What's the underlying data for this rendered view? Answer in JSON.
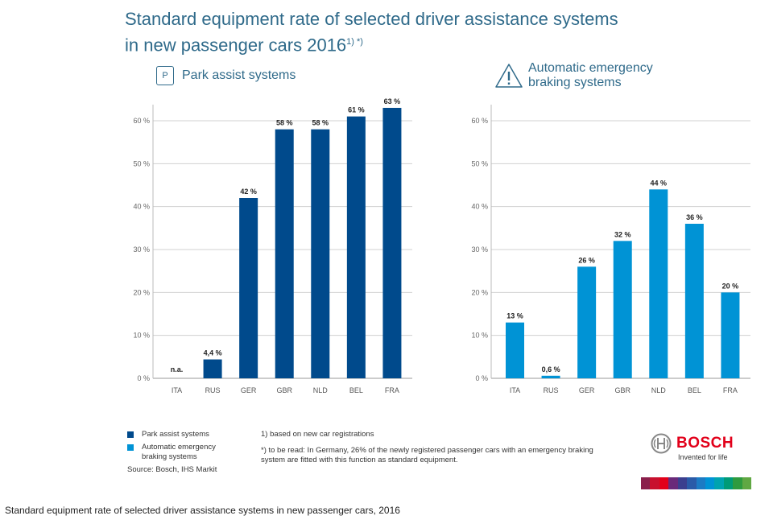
{
  "title": {
    "text": "Standard equipment rate of selected driver assistance systems",
    "line2": "in new passenger cars 2016",
    "superscript": "1) *)"
  },
  "park_panel": {
    "icon_letter": "P",
    "label": "Park assist systems"
  },
  "aeb_panel": {
    "label": "Automatic emergency braking systems"
  },
  "legend": {
    "items": [
      {
        "label": "Park assist systems",
        "color": "#004a8c"
      },
      {
        "label": "Automatic emergency braking systems",
        "color": "#0093d5"
      }
    ],
    "source": "Source: Bosch, IHS Markit"
  },
  "notes": {
    "note1": "1) based on new car registrations",
    "note2": "*) to be read: In Germany, 26% of the newly registered passenger cars with an emergency braking system are fitted with this function as standard equipment."
  },
  "brand": {
    "name": "BOSCH",
    "claim": "Invented for life",
    "color": "#e2001a"
  },
  "stripe_colors": [
    "#8b1f4b",
    "#c8102e",
    "#e2001a",
    "#6a2a7a",
    "#3b3f8f",
    "#2a5ba8",
    "#1c7bc4",
    "#0093d5",
    "#00a3b0",
    "#009b77",
    "#2e9b3f",
    "#60a843"
  ],
  "caption": "Standard equipment rate of selected driver assistance systems in new passenger cars, 2016",
  "chart_data": [
    {
      "type": "bar",
      "title": "Park assist systems",
      "categories": [
        "ITA",
        "RUS",
        "GER",
        "GBR",
        "NLD",
        "BEL",
        "FRA"
      ],
      "values": [
        null,
        4.4,
        42,
        58,
        58,
        61,
        63
      ],
      "value_labels": [
        "n.a.",
        "4,4 %",
        "42 %",
        "58 %",
        "58 %",
        "61 %",
        "63 %"
      ],
      "yticks": [
        0,
        10,
        20,
        30,
        40,
        50,
        60
      ],
      "ytick_labels": [
        "0 %",
        "10 %",
        "20 %",
        "30 %",
        "40 %",
        "50 %",
        "60 %"
      ],
      "ylim": [
        0,
        60
      ],
      "grid": true,
      "color": "#004a8c"
    },
    {
      "type": "bar",
      "title": "Automatic emergency braking systems",
      "categories": [
        "ITA",
        "RUS",
        "GER",
        "GBR",
        "NLD",
        "BEL",
        "FRA"
      ],
      "values": [
        13,
        0.6,
        26,
        32,
        44,
        36,
        20
      ],
      "value_labels": [
        "13 %",
        "0,6 %",
        "26 %",
        "32 %",
        "44 %",
        "36 %",
        "20 %"
      ],
      "yticks": [
        0,
        10,
        20,
        30,
        40,
        50,
        60
      ],
      "ytick_labels": [
        "0 %",
        "10 %",
        "20 %",
        "30 %",
        "40 %",
        "50 %",
        "60 %"
      ],
      "ylim": [
        0,
        60
      ],
      "grid": true,
      "color": "#0093d5"
    }
  ]
}
